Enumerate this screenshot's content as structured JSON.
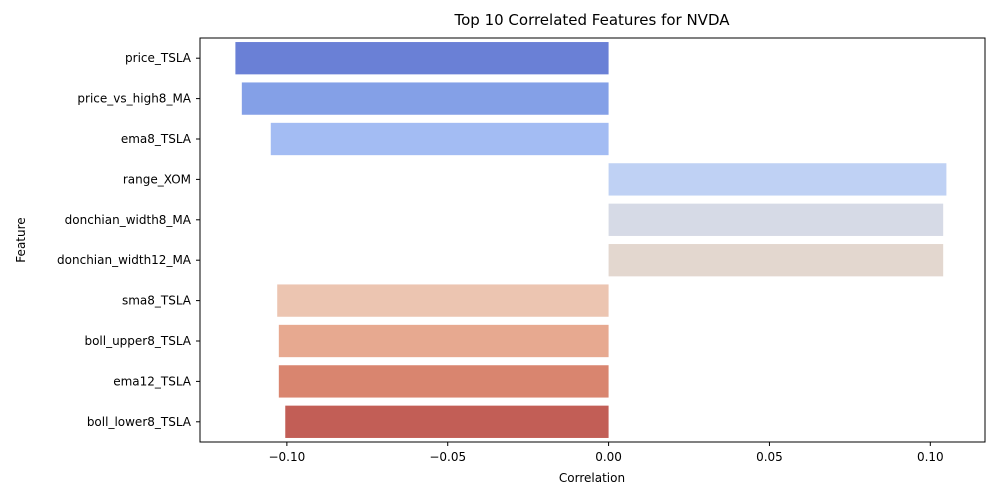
{
  "chart_data": {
    "type": "bar",
    "orientation": "horizontal",
    "title": "Top 10 Correlated Features for NVDA",
    "xlabel": "Correlation",
    "ylabel": "Feature",
    "xlim": [
      -0.127,
      0.117
    ],
    "xticks": [
      -0.1,
      -0.05,
      0.0,
      0.05,
      0.1
    ],
    "xtick_labels": [
      "−0.10",
      "−0.05",
      "0.00",
      "0.05",
      "0.10"
    ],
    "grid": false,
    "legend": "none",
    "categories": [
      "price_TSLA",
      "price_vs_high8_MA",
      "ema8_TSLA",
      "range_XOM",
      "donchian_width8_MA",
      "donchian_width12_MA",
      "sma8_TSLA",
      "boll_upper8_TSLA",
      "ema12_TSLA",
      "boll_lower8_TSLA"
    ],
    "values": [
      -0.116,
      -0.114,
      -0.105,
      0.105,
      0.104,
      0.104,
      -0.103,
      -0.1025,
      -0.1025,
      -0.1005
    ],
    "colors": [
      "#6a80d6",
      "#84a0e7",
      "#a3bcf3",
      "#bfd1f4",
      "#d6dae6",
      "#e3d7cf",
      "#ecc5b1",
      "#e7a990",
      "#d9856f",
      "#c25e56"
    ]
  }
}
